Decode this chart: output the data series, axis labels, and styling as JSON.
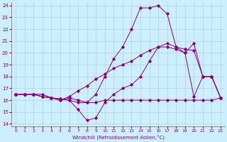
{
  "xlabel": "Windchill (Refroidissement éolien,°C)",
  "bg_color": "#cceeff",
  "grid_color": "#aacccc",
  "line_color": "#880088",
  "xlim": [
    -0.5,
    23.5
  ],
  "ylim": [
    13.8,
    24.3
  ],
  "yticks": [
    14,
    15,
    16,
    17,
    18,
    19,
    20,
    21,
    22,
    23,
    24
  ],
  "xticks": [
    0,
    1,
    2,
    3,
    4,
    5,
    6,
    7,
    8,
    9,
    10,
    11,
    12,
    13,
    14,
    15,
    16,
    17,
    18,
    19,
    20,
    21,
    22,
    23
  ],
  "series1_x": [
    0,
    1,
    2,
    3,
    4,
    5,
    6,
    7,
    8,
    9,
    10,
    11,
    12,
    13,
    14,
    15,
    16,
    17,
    18,
    19,
    20,
    21,
    22,
    23
  ],
  "series1_y": [
    16.5,
    16.5,
    16.5,
    16.5,
    16.2,
    16.1,
    16.0,
    15.8,
    15.8,
    15.8,
    16.0,
    16.0,
    16.0,
    16.0,
    16.0,
    16.0,
    16.0,
    16.0,
    16.0,
    16.0,
    16.0,
    16.0,
    16.0,
    16.2
  ],
  "series2_x": [
    0,
    1,
    2,
    3,
    4,
    5,
    6,
    7,
    8,
    9,
    10,
    11,
    12,
    13,
    14,
    15,
    16,
    17,
    18,
    19,
    20,
    21,
    22,
    23
  ],
  "series2_y": [
    16.5,
    16.5,
    16.5,
    16.3,
    16.2,
    16.1,
    16.0,
    15.2,
    14.3,
    14.5,
    15.8,
    16.5,
    17.0,
    17.3,
    18.0,
    19.3,
    20.5,
    20.5,
    20.3,
    20.0,
    20.8,
    18.0,
    18.0,
    16.2
  ],
  "series3_x": [
    0,
    1,
    2,
    3,
    4,
    5,
    6,
    7,
    8,
    9,
    10,
    11,
    12,
    13,
    14,
    15,
    16,
    17,
    18,
    19,
    20,
    21,
    22,
    23
  ],
  "series3_y": [
    16.5,
    16.5,
    16.5,
    16.3,
    16.2,
    16.0,
    16.3,
    16.8,
    17.2,
    17.8,
    18.2,
    18.7,
    19.0,
    19.3,
    19.8,
    20.2,
    20.5,
    20.8,
    20.5,
    20.3,
    20.2,
    18.0,
    18.0,
    16.2
  ],
  "series4_x": [
    0,
    1,
    2,
    3,
    4,
    5,
    6,
    7,
    8,
    9,
    10,
    11,
    12,
    13,
    14,
    15,
    16,
    17,
    18,
    19,
    20,
    21,
    22,
    23
  ],
  "series4_y": [
    16.5,
    16.5,
    16.5,
    16.3,
    16.2,
    16.0,
    16.2,
    16.0,
    15.8,
    16.5,
    18.0,
    19.5,
    20.5,
    22.0,
    23.8,
    23.8,
    24.0,
    23.3,
    20.5,
    20.0,
    16.3,
    18.0,
    18.0,
    16.2
  ]
}
